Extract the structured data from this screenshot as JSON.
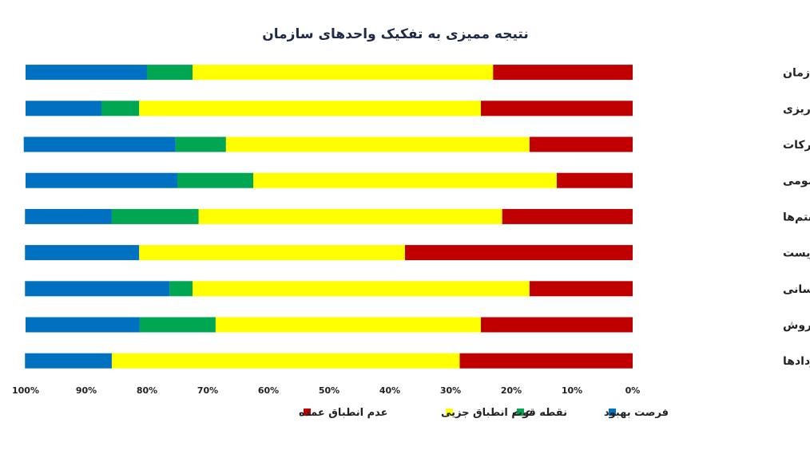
{
  "chart_data": {
    "type": "bar",
    "orientation": "horizontal-stacked-100",
    "title": "نتیجه ممیزی به تفکیک واحدهای سازمان",
    "categories": [
      "کل سازمان",
      "برنامه ریزی",
      "تأمین و تدارکات",
      "روابط عمومی",
      "مهندسی سیستم‌ها",
      "ایمنی بهداشت، محیط زیست",
      "منابع انسانی",
      "فروش",
      "امور قراردادها"
    ],
    "series": [
      {
        "name": "عدم انطباق عمده",
        "color": "#c00000",
        "values": [
          23,
          25,
          17,
          12.5,
          21.5,
          37.5,
          17,
          25,
          28.5
        ]
      },
      {
        "name": "عدم انطباق جزیی",
        "color": "#ffff00",
        "values": [
          49.5,
          56.3,
          50,
          50,
          50,
          43.8,
          55.5,
          43.7,
          57.3
        ]
      },
      {
        "name": "نقطه قوت",
        "color": "#00a651",
        "values": [
          7.5,
          6.2,
          8.3,
          12.5,
          14.3,
          0,
          3.8,
          12.5,
          0
        ]
      },
      {
        "name": "فرصت بهبود",
        "color": "#0070c0",
        "values": [
          20,
          12.5,
          25,
          25,
          14.3,
          18.8,
          23.8,
          18.8,
          14.3
        ]
      }
    ],
    "x_ticks": [
      "100%",
      "90%",
      "80%",
      "70%",
      "60%",
      "50%",
      "40%",
      "30%",
      "20%",
      "10%",
      "0%"
    ],
    "xlim": [
      0,
      100
    ],
    "x_reversed": true,
    "grid": false,
    "legend_position": "bottom"
  }
}
